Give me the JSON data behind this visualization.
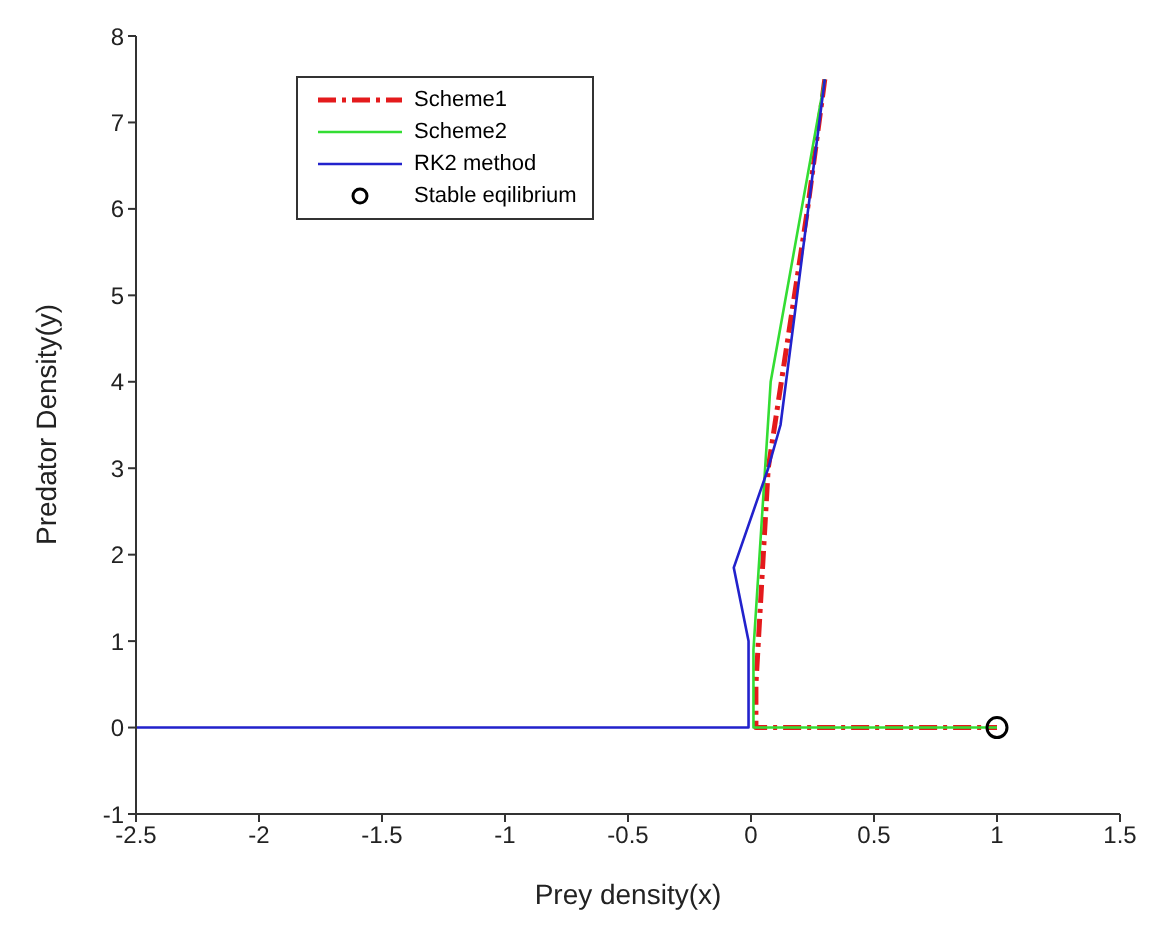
{
  "chart_data": {
    "type": "line",
    "xlabel": "Prey density(x)",
    "ylabel": "Predator Density(y)",
    "xlim": [
      -2.5,
      1.5
    ],
    "xticks": [
      -2.5,
      -2,
      -1.5,
      -1,
      -0.5,
      0,
      0.5,
      1,
      1.5
    ],
    "ylim": [
      -1,
      8
    ],
    "yticks": [
      -1,
      0,
      1,
      2,
      3,
      4,
      5,
      6,
      7,
      8
    ],
    "grid": false,
    "legend": "top left",
    "series": [
      {
        "name": "Scheme1",
        "color": "#e41a1c",
        "line_style": "dashed",
        "x": [
          0.3,
          0.23,
          0.07,
          0.02,
          0.02,
          1
        ],
        "values": [
          7.5,
          6.0,
          3.0,
          0.5,
          0,
          0
        ]
      },
      {
        "name": "Scheme2",
        "color": "#33dd33",
        "line_style": "solid",
        "x": [
          0.3,
          0.08,
          0.01,
          0.01,
          1
        ],
        "values": [
          7.5,
          4.0,
          0.9,
          0,
          0
        ]
      },
      {
        "name": "RK2 method",
        "color": "#2222cc",
        "line_style": "solid",
        "x": [
          0.3,
          0.12,
          0.07,
          -0.07,
          -0.01,
          -0.01,
          -2.5
        ],
        "values": [
          7.5,
          3.5,
          3.0,
          1.85,
          1.0,
          0,
          0
        ]
      },
      {
        "name": "Stable eqilibrium",
        "type": "scatter",
        "color": "#000000",
        "marker": "circle",
        "x": [
          1
        ],
        "values": [
          0
        ]
      }
    ]
  }
}
